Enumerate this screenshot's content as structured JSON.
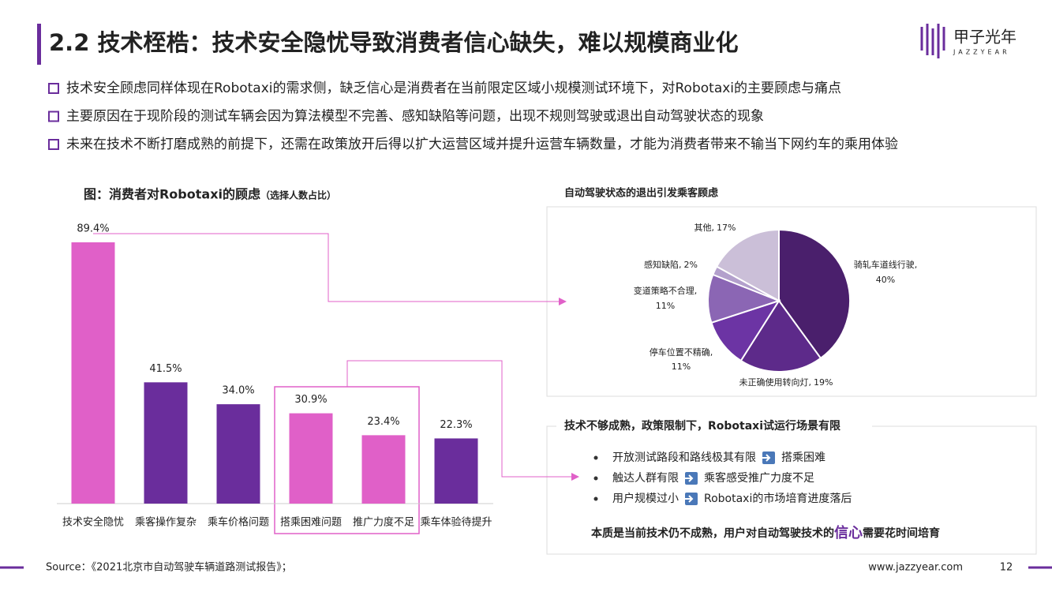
{
  "header": {
    "title": "2.2 技术桎梏：技术安全隐忧导致消费者信心缺失，难以规模商业化",
    "logo": "甲子光年",
    "logo_sub": "JAZZYEAR"
  },
  "bullets": [
    "技术安全顾虑同样体现在Robotaxi的需求侧，缺乏信心是消费者在当前限定区域小规模测试环境下，对Robotaxi的主要顾虑与痛点",
    "主要原因在于现阶段的测试车辆会因为算法模型不完善、感知缺陷等问题，出现不规则驾驶或退出自动驾驶状态的现象",
    "未来在技术不断打磨成熟的前提下，还需在政策放开后得以扩大运营区域并提升运营车辆数量，才能为消费者带来不输当下网约车的乘用体验"
  ],
  "chart_data": [
    {
      "type": "bar",
      "title": "图：消费者对Robotaxi的顾虑",
      "subtitle": "（选择人数占比）",
      "categories": [
        "技术安全隐忧",
        "乘客操作复杂",
        "乘车价格问题",
        "搭乘困难问题",
        "推广力度不足",
        "乘车体验待提升"
      ],
      "values": [
        89.4,
        41.5,
        34.0,
        30.9,
        23.4,
        22.3
      ],
      "value_labels": [
        "89.4%",
        "41.5%",
        "34.0%",
        "30.9%",
        "23.4%",
        "22.3%"
      ],
      "colors": [
        "#e060c8",
        "#6a2d9c",
        "#6a2d9c",
        "#e060c8",
        "#e060c8",
        "#6a2d9c"
      ]
    },
    {
      "type": "pie",
      "title": "自动驾驶状态的退出引发乘客顾虑",
      "categories": [
        "骑轧车道线行驶,",
        "未正确使用转向灯,",
        "停车位置不精确,",
        "变道策略不合理,",
        "感知缺陷,",
        "其他,"
      ],
      "values": [
        40,
        19,
        11,
        11,
        2,
        17
      ],
      "value_labels": [
        "40%",
        "19%",
        "11%",
        "11%",
        "2%",
        "17%"
      ],
      "colors": [
        "#4a1f6c",
        "#5d2a8a",
        "#6c34a4",
        "#8b66b4",
        "#b3a0cc",
        "#cbbfd8"
      ]
    }
  ],
  "textbox": {
    "title": "技术不够成熟，政策限制下，Robotaxi试运行场景有限",
    "items": [
      [
        "开放测试路段和路线极其有限",
        "搭乘困难"
      ],
      [
        "触达人群有限",
        "乘客感受推广力度不足"
      ],
      [
        "用户规模过小",
        "Robotaxi的市场培育进度落后"
      ]
    ],
    "conclusion": [
      "本质是当前技术仍不成熟，用户对自动驾驶技术的",
      "信心",
      "需要花时间培育"
    ]
  },
  "footer": {
    "source": "Source：《2021北京市自动驾驶车辆道路测试报告》；",
    "url": "www.jazzyear.com",
    "page": "12"
  }
}
